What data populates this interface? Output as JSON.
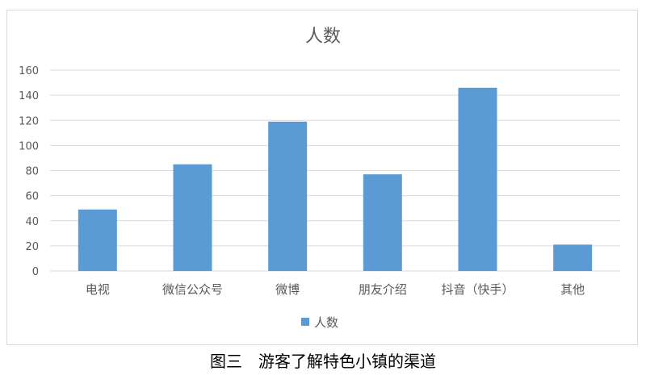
{
  "chart_data": {
    "type": "bar",
    "title": "人数",
    "categories": [
      "电视",
      "微信公众号",
      "微博",
      "朋友介绍",
      "抖音（快手）",
      "其他"
    ],
    "series": [
      {
        "name": "人数",
        "values": [
          49,
          85,
          119,
          77,
          146,
          21
        ],
        "color": "#5b9bd5"
      }
    ],
    "ylim": [
      0,
      160
    ],
    "yticks": [
      0,
      20,
      40,
      60,
      80,
      100,
      120,
      140,
      160
    ],
    "grid": true,
    "legend": "bottom",
    "xlabel": "",
    "ylabel": ""
  },
  "caption": "图三　游客了解特色小镇的渠道"
}
